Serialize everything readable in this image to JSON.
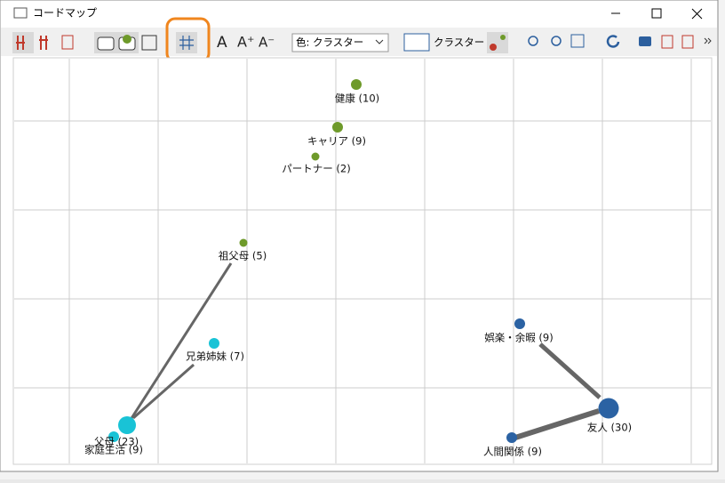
{
  "window": {
    "title": "コードマップ"
  },
  "toolbar": {
    "font_buttons": [
      "A",
      "A⁺",
      "A⁻"
    ],
    "color_select": "色: クラスター",
    "cluster_label": "クラスター"
  },
  "nodes": [
    {
      "label": "健康 (10)"
    },
    {
      "label": "キャリア (9)"
    },
    {
      "label": "パートナー (2)"
    },
    {
      "label": "祖父母 (5)"
    },
    {
      "label": "兄弟姉妹 (7)"
    },
    {
      "label": "父母 (23)"
    },
    {
      "label": "家庭生活 (9)"
    },
    {
      "label": "娯楽・余暇 (9)"
    },
    {
      "label": "友人 (30)"
    },
    {
      "label": "人間関係 (9)"
    }
  ]
}
